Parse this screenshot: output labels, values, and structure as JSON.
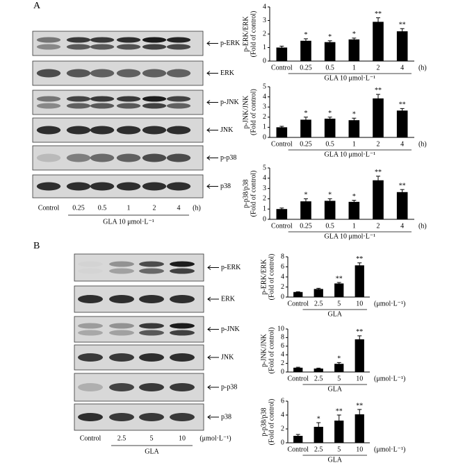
{
  "panels": [
    {
      "label": "A",
      "blots": [
        "p-ERK",
        "ERK",
        "p-JNK",
        "JNK",
        "p-p38",
        "p38"
      ],
      "lanes": [
        "Control",
        "0.25",
        "0.5",
        "1",
        "2",
        "4"
      ],
      "unit": "(h)",
      "treatment": "GLA 10 μmol·L⁻¹"
    },
    {
      "label": "B",
      "blots": [
        "p-ERK",
        "ERK",
        "p-JNK",
        "JNK",
        "p-p38",
        "p38"
      ],
      "lanes": [
        "Control",
        "2.5",
        "5",
        "10"
      ],
      "unit": "(μmol·L⁻¹)",
      "treatment": "GLA"
    }
  ],
  "chart_data": [
    {
      "type": "bar",
      "ylabel": [
        "p-ERK/ERK",
        "(Fold of control)"
      ],
      "categories": [
        "Control",
        "0.25",
        "0.5",
        "1",
        "2",
        "4"
      ],
      "unit": "(h)",
      "xlabel": "GLA 10 μmol·L⁻¹",
      "values": [
        1,
        1.5,
        1.4,
        1.6,
        2.9,
        2.2
      ],
      "errors": [
        0.1,
        0.15,
        0.1,
        0.1,
        0.3,
        0.2
      ],
      "significance": [
        null,
        "*",
        "*",
        "*",
        "**",
        "**"
      ],
      "color": "#000000",
      "ylim": [
        0,
        4
      ],
      "yticks": [
        0,
        1,
        2,
        3,
        4
      ]
    },
    {
      "type": "bar",
      "ylabel": [
        "p-JNK/JNK",
        "(Fold of control)"
      ],
      "categories": [
        "Control",
        "0.25",
        "0.5",
        "1",
        "2",
        "4"
      ],
      "unit": "(h)",
      "xlabel": "GLA 10 μmol·L⁻¹",
      "values": [
        1,
        1.75,
        1.85,
        1.7,
        3.85,
        2.65
      ],
      "errors": [
        0.1,
        0.25,
        0.15,
        0.2,
        0.4,
        0.2
      ],
      "significance": [
        null,
        "*",
        "*",
        "*",
        "**",
        "**"
      ],
      "color": "#000000",
      "ylim": [
        0,
        5
      ],
      "yticks": [
        0,
        1,
        2,
        3,
        4,
        5
      ]
    },
    {
      "type": "bar",
      "ylabel": [
        "p-p38/p38",
        "(Fold of control)"
      ],
      "categories": [
        "Control",
        "0.25",
        "0.5",
        "1",
        "2",
        "4"
      ],
      "unit": "(h)",
      "xlabel": "GLA 10 μmol·L⁻¹",
      "values": [
        1,
        1.75,
        1.8,
        1.7,
        3.8,
        2.65
      ],
      "errors": [
        0.1,
        0.25,
        0.2,
        0.15,
        0.4,
        0.25
      ],
      "significance": [
        null,
        "*",
        "*",
        "*",
        "**",
        "**"
      ],
      "color": "#000000",
      "ylim": [
        0,
        5
      ],
      "yticks": [
        0,
        1,
        2,
        3,
        4,
        5
      ]
    },
    {
      "type": "bar",
      "ylabel": [
        "p-ERK/ERK",
        "(Fold of control)"
      ],
      "categories": [
        "Control",
        "2.5",
        "5",
        "10"
      ],
      "unit": "(μmol·L⁻¹)",
      "xlabel": "GLA",
      "values": [
        1,
        1.6,
        2.7,
        6.3
      ],
      "errors": [
        0.05,
        0.15,
        0.2,
        0.5
      ],
      "significance": [
        null,
        null,
        "**",
        "**"
      ],
      "color": "#000000",
      "ylim": [
        0,
        8
      ],
      "yticks": [
        0,
        2,
        4,
        6,
        8
      ]
    },
    {
      "type": "bar",
      "ylabel": [
        "p-JNK/JNK",
        "(Fold of control)"
      ],
      "categories": [
        "Control",
        "2.5",
        "5",
        "10"
      ],
      "unit": "(μmol·L⁻¹)",
      "xlabel": "GLA",
      "values": [
        1,
        0.8,
        1.9,
        7.6
      ],
      "errors": [
        0.1,
        0.1,
        0.3,
        0.8
      ],
      "significance": [
        null,
        null,
        "*",
        "**"
      ],
      "color": "#000000",
      "ylim": [
        0,
        10
      ],
      "yticks": [
        0,
        2,
        4,
        6,
        8,
        10
      ]
    },
    {
      "type": "bar",
      "ylabel": [
        "p-p38/p38",
        "(Fold of control)"
      ],
      "categories": [
        "Control",
        "2.5",
        "5",
        "10"
      ],
      "unit": "(μmol·L⁻¹)",
      "xlabel": "GLA",
      "values": [
        1,
        2.3,
        3.2,
        4.1
      ],
      "errors": [
        0.2,
        0.6,
        0.8,
        0.7
      ],
      "significance": [
        null,
        "*",
        "**",
        "**"
      ],
      "color": "#000000",
      "ylim": [
        0,
        6
      ],
      "yticks": [
        0,
        2,
        4,
        6
      ]
    }
  ]
}
